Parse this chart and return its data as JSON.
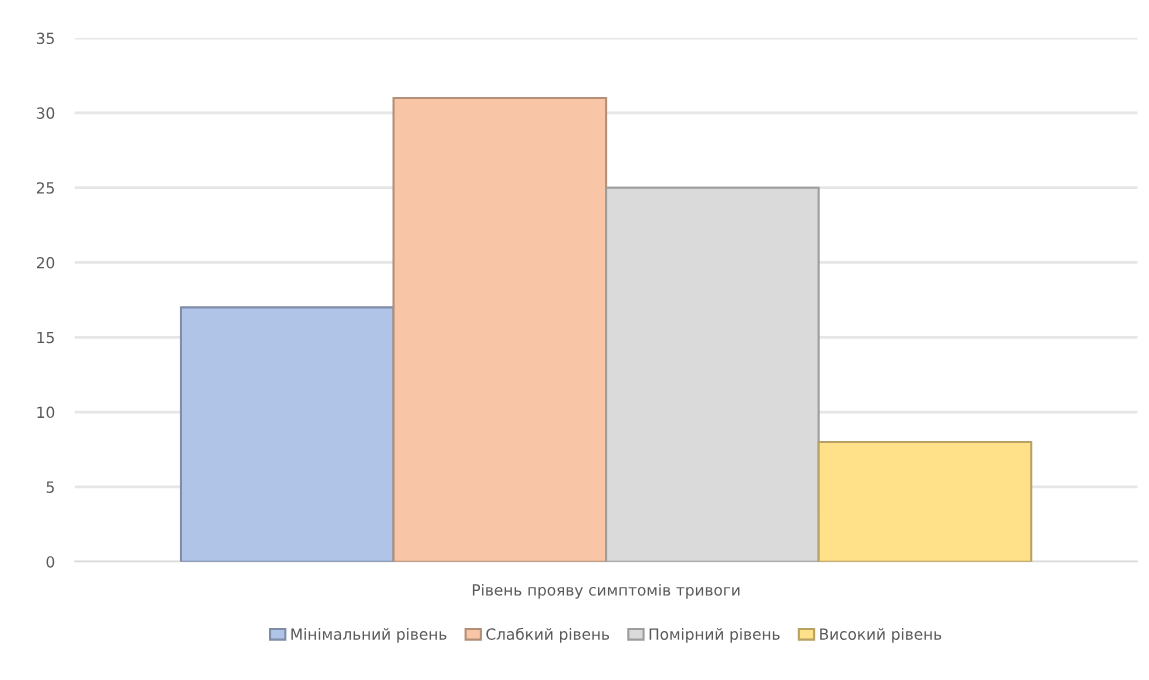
{
  "chart_data": {
    "type": "bar",
    "categories": [
      "Рівень прояву симптомів тривоги"
    ],
    "series": [
      {
        "name": "Мінімальний рівень",
        "color": "#b0c4e8",
        "values": [
          17
        ]
      },
      {
        "name": "Слабкий рівень",
        "color": "#f8c6a6",
        "values": [
          31
        ]
      },
      {
        "name": "Помірний рівень",
        "color": "#dadada",
        "values": [
          25
        ]
      },
      {
        "name": "Високий рівень",
        "color": "#ffe18a",
        "values": [
          8
        ]
      }
    ],
    "ylim": [
      0,
      35
    ],
    "yticks": [
      0,
      5,
      10,
      15,
      20,
      25,
      30,
      35
    ],
    "grid": "y",
    "legend": "bottom"
  }
}
